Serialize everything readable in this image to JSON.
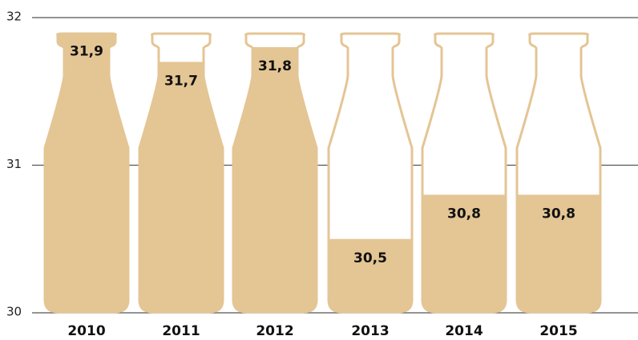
{
  "chart_data": {
    "type": "bar",
    "categories": [
      "2010",
      "2011",
      "2012",
      "2013",
      "2014",
      "2015"
    ],
    "values": [
      31.9,
      31.7,
      31.8,
      30.5,
      30.8,
      30.8
    ],
    "value_labels": [
      "31,9",
      "31,7",
      "31,8",
      "30,5",
      "30,8",
      "30,8"
    ],
    "color": "#e4c594",
    "ylim": [
      30,
      32
    ],
    "yticks": [
      30,
      31,
      32
    ],
    "grid": true
  }
}
